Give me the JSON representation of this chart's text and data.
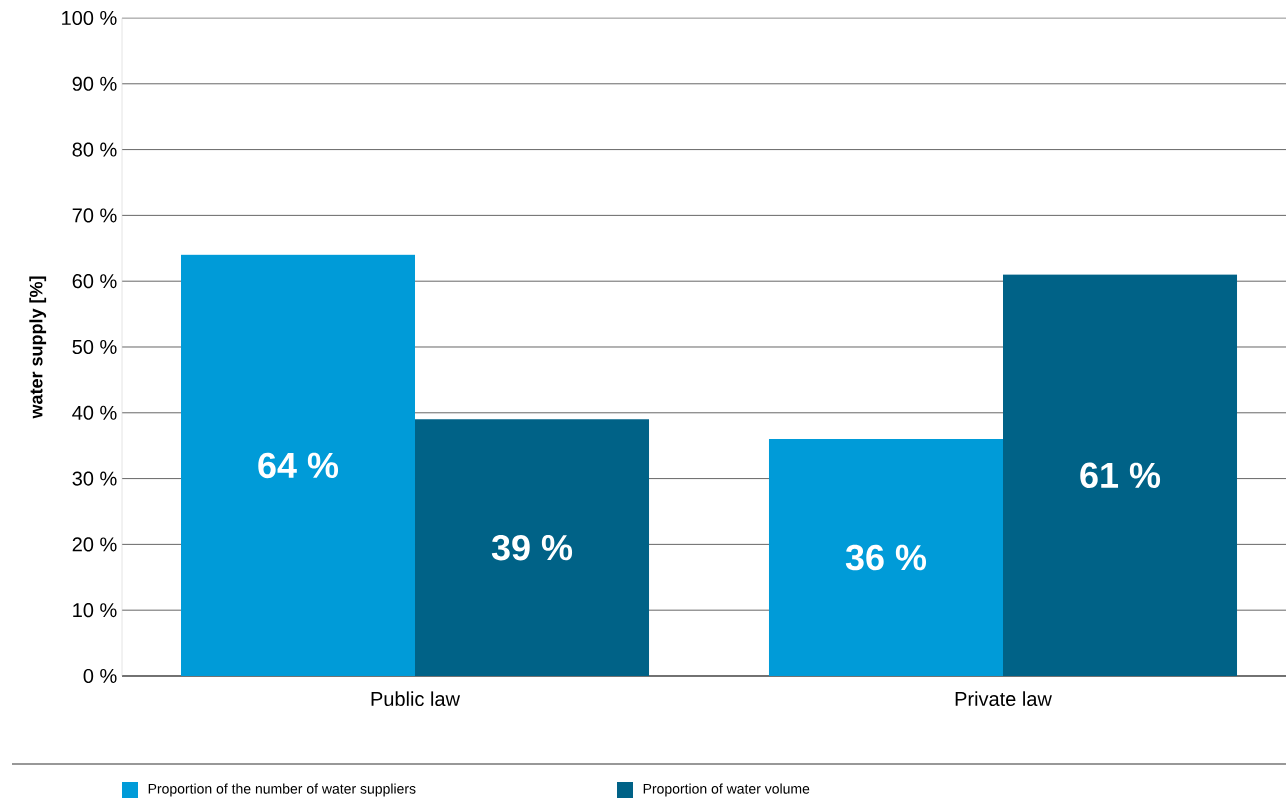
{
  "chart_data": {
    "type": "bar",
    "ylabel": "water supply [%]",
    "categories": [
      "Public law",
      "Private law"
    ],
    "series": [
      {
        "name": "Proportion of the number of water suppliers",
        "color": "#009bd8",
        "values": [
          64,
          36
        ],
        "value_labels": [
          "64 %",
          "36 %"
        ]
      },
      {
        "name": "Proportion of water volume",
        "color": "#006287",
        "values": [
          39,
          61
        ],
        "value_labels": [
          "39 %",
          "61 %"
        ]
      }
    ],
    "ylim": [
      0,
      100
    ],
    "yticks": [
      {
        "value": 0,
        "label": "0 %"
      },
      {
        "value": 10,
        "label": "10 %"
      },
      {
        "value": 20,
        "label": "20 %"
      },
      {
        "value": 30,
        "label": "30 %"
      },
      {
        "value": 40,
        "label": "40 %"
      },
      {
        "value": 50,
        "label": "50 %"
      },
      {
        "value": 60,
        "label": "60 %"
      },
      {
        "value": 70,
        "label": "70 %"
      },
      {
        "value": 80,
        "label": "80 %"
      },
      {
        "value": 90,
        "label": "90 %"
      },
      {
        "value": 100,
        "label": "100 %"
      }
    ],
    "grid": "y",
    "legend": "bottom"
  }
}
